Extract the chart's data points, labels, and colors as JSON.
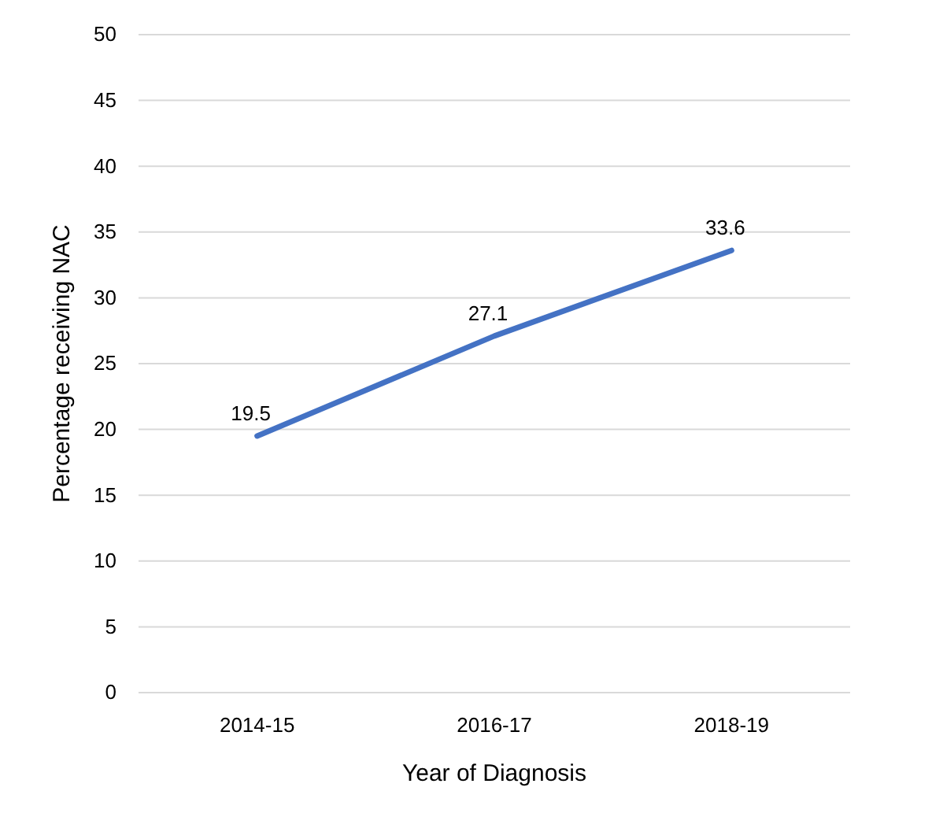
{
  "chart_data": {
    "type": "line",
    "xlabel": "Year of Diagnosis",
    "ylabel": "Percentage receiving NAC",
    "categories": [
      "2014-15",
      "2016-17",
      "2018-19"
    ],
    "series": [
      {
        "color": "#4472c4",
        "values": [
          19.5,
          27.1,
          33.6
        ]
      }
    ],
    "ylim": [
      0,
      50
    ],
    "yticks": [
      0,
      5,
      10,
      15,
      20,
      25,
      30,
      35,
      40,
      45,
      50
    ],
    "grid": "y",
    "data_labels": true,
    "marker": "none",
    "line_style": "solid"
  }
}
